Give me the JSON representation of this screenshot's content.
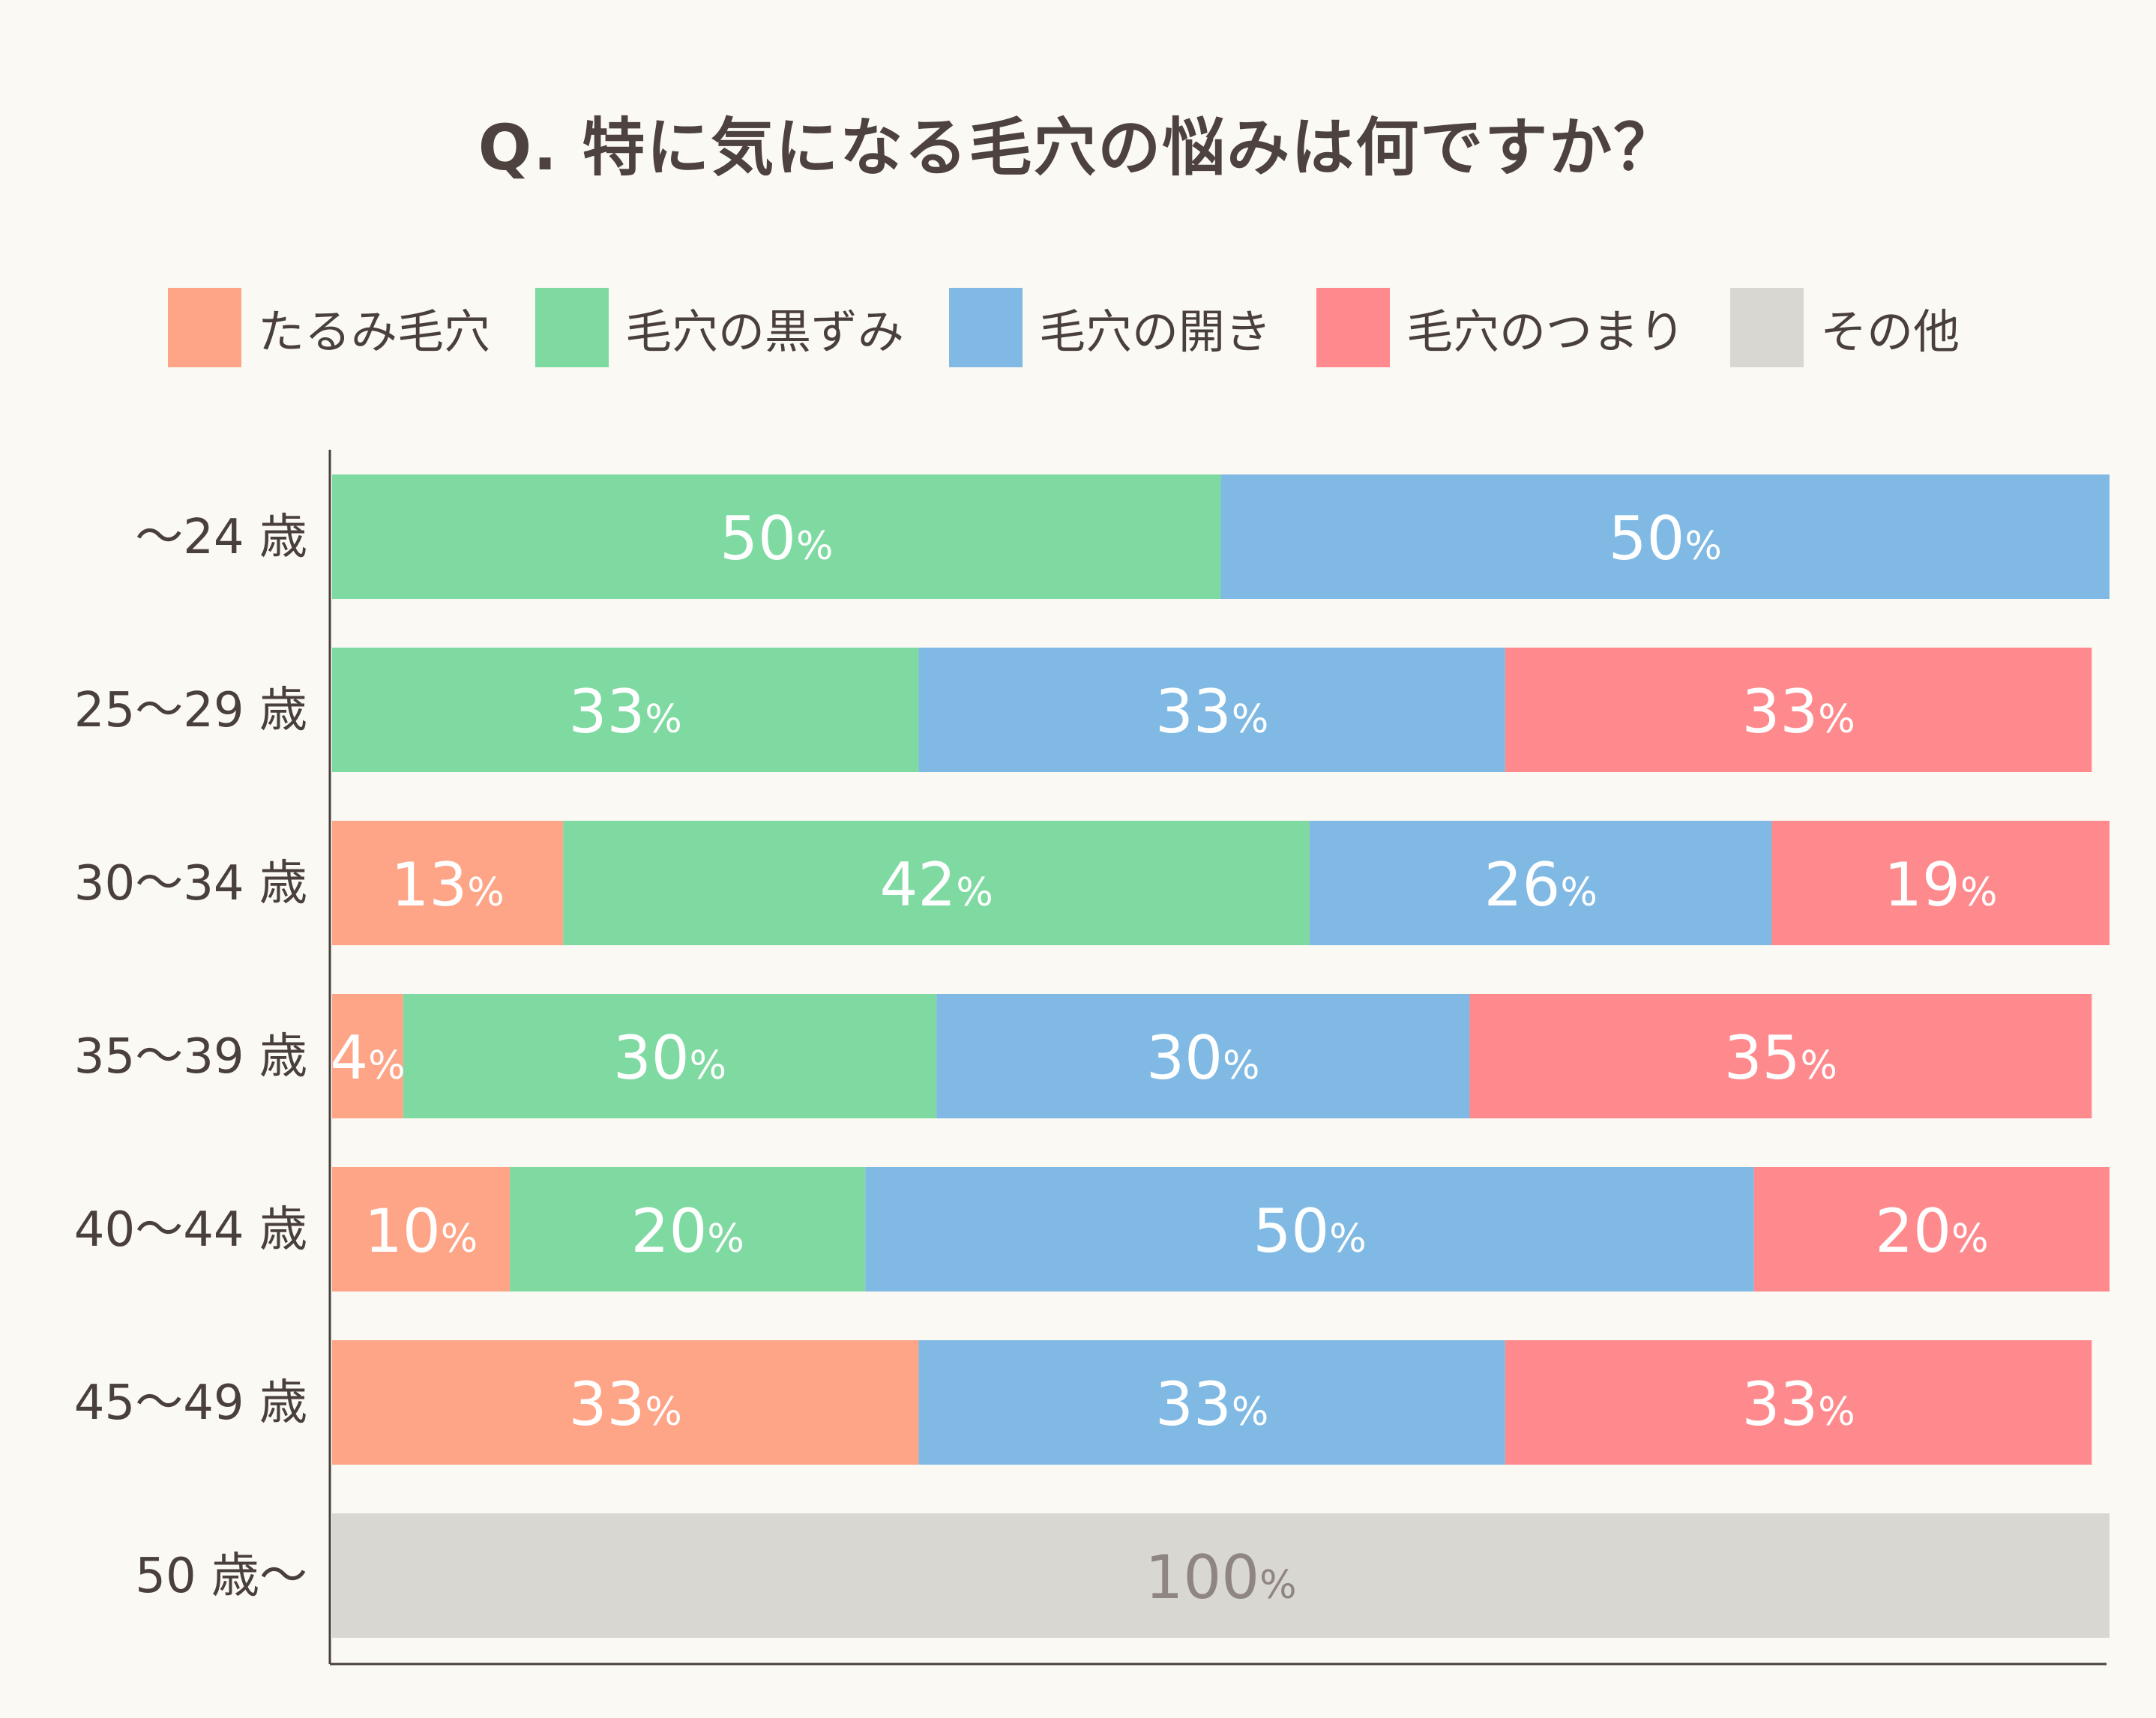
{
  "chart_data": {
    "type": "bar",
    "orientation": "horizontal-stacked-100",
    "title": "Q. 特に気になる毛穴の悩みは何ですか？",
    "legend_position": "top",
    "xlim": [
      0,
      100
    ],
    "categories": [
      "～24 歳",
      "25～29 歳",
      "30～34 歳",
      "35～39 歳",
      "40～44 歳",
      "45～49 歳",
      "50 歳～"
    ],
    "series": [
      {
        "name": "たるみ毛穴",
        "color": "#fea487",
        "values": [
          0,
          0,
          13,
          4,
          10,
          33,
          0
        ]
      },
      {
        "name": "毛穴の黒ずみ",
        "color": "#7fdaa2",
        "values": [
          50,
          33,
          42,
          30,
          20,
          0,
          0
        ]
      },
      {
        "name": "毛穴の開き",
        "color": "#80bae4",
        "values": [
          50,
          33,
          26,
          30,
          50,
          33,
          0
        ]
      },
      {
        "name": "毛穴のつまり",
        "color": "#fe8a8d",
        "values": [
          0,
          33,
          19,
          35,
          20,
          33,
          0
        ]
      },
      {
        "name": "その他",
        "color": "#d9d7d1",
        "values": [
          0,
          0,
          0,
          0,
          0,
          0,
          100
        ]
      }
    ],
    "value_suffix": "%",
    "label_color": "#ffffff",
    "other_label_color": "#8f8582"
  }
}
